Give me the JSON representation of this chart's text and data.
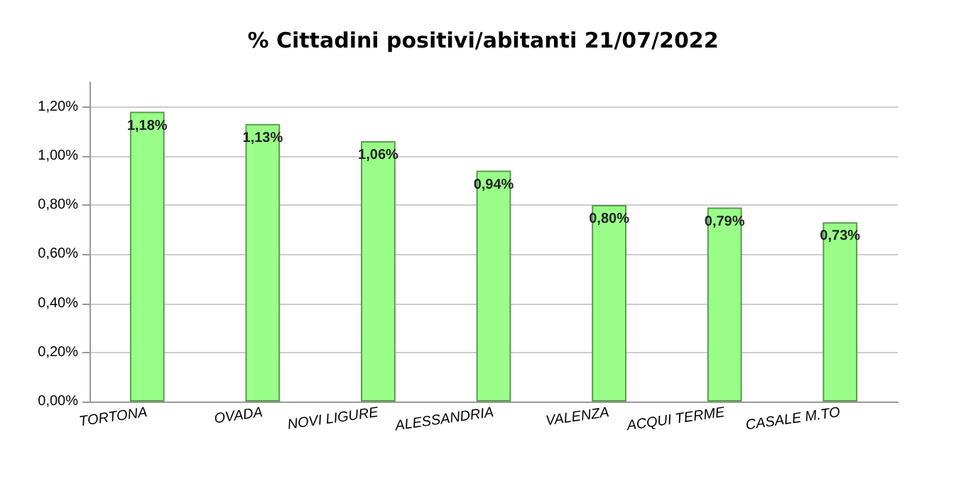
{
  "chart_data": {
    "type": "bar",
    "title": "% Cittadini positivi/abitanti 21/07/2022",
    "categories": [
      "TORTONA",
      "OVADA",
      "NOVI LIGURE",
      "ALESSANDRIA",
      "VALENZA",
      "ACQUI TERME",
      "CASALE M.TO"
    ],
    "values": [
      1.18,
      1.13,
      1.06,
      0.94,
      0.8,
      0.79,
      0.73
    ],
    "value_labels": [
      "1,18%",
      "1,13%",
      "1,06%",
      "0,94%",
      "0,80%",
      "0,79%",
      "0,73%"
    ],
    "color": "#99ff88",
    "ylim": [
      0,
      1.3
    ],
    "yticks": [
      {
        "value": 0,
        "label": "0,00%"
      },
      {
        "value": 0.2,
        "label": "0,20%"
      },
      {
        "value": 0.4,
        "label": "0,40%"
      },
      {
        "value": 0.6,
        "label": "0,60%"
      },
      {
        "value": 0.8,
        "label": "0,80%"
      },
      {
        "value": 1.0,
        "label": "1,00%"
      },
      {
        "value": 1.2,
        "label": "1,20%"
      }
    ],
    "grid": "y"
  }
}
